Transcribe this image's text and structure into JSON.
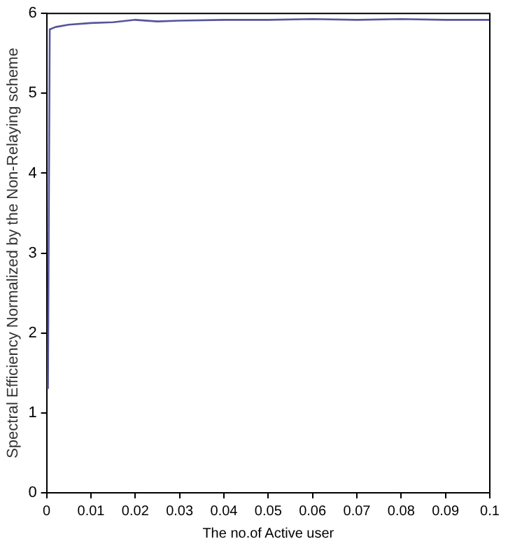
{
  "chart_data": {
    "type": "line",
    "xlabel": "The no.of Active user",
    "ylabel": "Spectral Efficiency Normalized by the Non-Relaying scheme",
    "series": [
      {
        "color": "#55559a",
        "x": [
          0.0003,
          0.0007,
          0.002,
          0.005,
          0.01,
          0.015,
          0.02,
          0.025,
          0.03,
          0.04,
          0.05,
          0.06,
          0.07,
          0.08,
          0.09,
          0.1
        ],
        "values": [
          1.3,
          5.8,
          5.83,
          5.86,
          5.88,
          5.89,
          5.92,
          5.9,
          5.91,
          5.92,
          5.92,
          5.93,
          5.92,
          5.93,
          5.92,
          5.92
        ]
      }
    ],
    "xlim": [
      0,
      0.1
    ],
    "xticks": [
      0,
      0.01,
      0.02,
      0.03,
      0.04,
      0.05,
      0.06,
      0.07,
      0.08,
      0.09,
      0.1
    ],
    "ylim": [
      0,
      6
    ],
    "yticks": [
      0,
      1,
      2,
      3,
      4,
      5,
      6
    ],
    "grid": false,
    "legend": false,
    "marker": "none",
    "line_style": "solid"
  }
}
